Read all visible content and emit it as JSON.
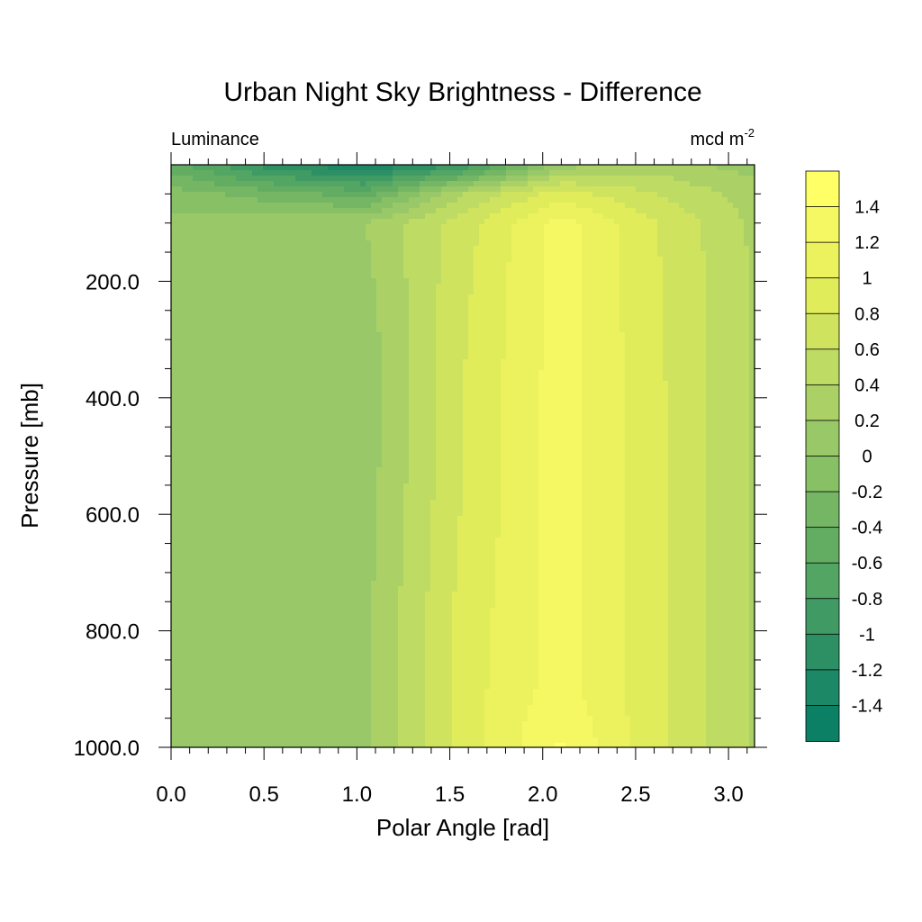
{
  "chart_data": {
    "type": "heatmap",
    "title": "Urban Night Sky Brightness - Difference",
    "left_string": "Luminance",
    "right_string_base": "mcd m",
    "right_string_exp": "-2",
    "xlabel": "Polar Angle [rad]",
    "ylabel": "Pressure [mb]",
    "xlim": [
      0,
      3.14
    ],
    "ylim": [
      1000,
      0
    ],
    "x_ticks": [
      "0.0",
      "0.5",
      "1.0",
      "1.5",
      "2.0",
      "2.5",
      "3.0"
    ],
    "y_ticks": [
      "200.0",
      "400.0",
      "600.0",
      "800.0",
      "1000.0"
    ],
    "grid": false,
    "legend": "right",
    "colorbar": {
      "labels": [
        "1.4",
        "1.2",
        "1",
        "0.8",
        "0.6",
        "0.4",
        "0.2",
        "0",
        "-0.2",
        "-0.4",
        "-0.6",
        "-0.8",
        "-1",
        "-1.2",
        "-1.4"
      ],
      "colors": [
        "#ffff66",
        "#f5f862",
        "#ebf25e",
        "#e0ec5a",
        "#d0e35f",
        "#bedb63",
        "#abd166",
        "#98c867",
        "#87c065",
        "#75b664",
        "#63ad63",
        "#52a563",
        "#3f9a63",
        "#2c9064",
        "#1d8865",
        "#0c8065"
      ]
    },
    "x": [
      0,
      0.5236,
      1.0472,
      1.5708,
      2.0944,
      2.618,
      3.1416
    ],
    "y": [
      0,
      50,
      100,
      200,
      300,
      400,
      500,
      600,
      700,
      800,
      900,
      1000
    ],
    "z": [
      [
        -0.5,
        -1.1,
        -1.4,
        -1.0,
        0.1,
        0.3,
        0.1
      ],
      [
        -0.1,
        -0.3,
        -0.5,
        0.4,
        0.9,
        0.6,
        0.3
      ],
      [
        0.05,
        0.1,
        0.2,
        0.7,
        1.3,
        0.8,
        0.35
      ],
      [
        0.05,
        0.05,
        0.15,
        0.75,
        1.3,
        0.82,
        0.38
      ],
      [
        0.05,
        0.05,
        0.1,
        0.78,
        1.3,
        0.83,
        0.38
      ],
      [
        0.05,
        0.05,
        0.1,
        0.8,
        1.3,
        0.84,
        0.38
      ],
      [
        0.05,
        0.05,
        0.1,
        0.8,
        1.3,
        0.84,
        0.38
      ],
      [
        0.05,
        0.05,
        0.12,
        0.82,
        1.3,
        0.84,
        0.38
      ],
      [
        0.05,
        0.05,
        0.14,
        0.85,
        1.3,
        0.84,
        0.38
      ],
      [
        0.05,
        0.05,
        0.15,
        0.88,
        1.3,
        0.84,
        0.38
      ],
      [
        0.05,
        0.05,
        0.16,
        0.9,
        1.3,
        0.84,
        0.38
      ],
      [
        0.05,
        0.05,
        0.16,
        0.9,
        1.42,
        0.84,
        0.38
      ]
    ]
  }
}
